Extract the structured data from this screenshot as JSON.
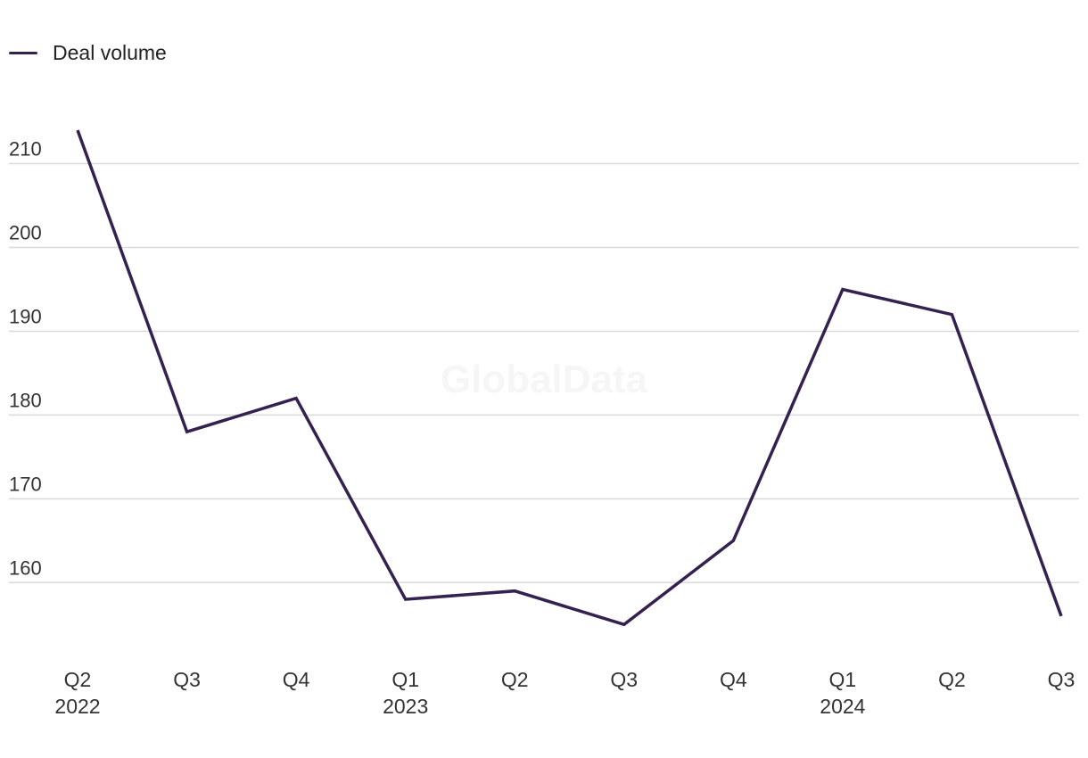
{
  "chart_data": {
    "type": "line",
    "categories": [
      "Q2",
      "Q3",
      "Q4",
      "Q1",
      "Q2",
      "Q3",
      "Q4",
      "Q1",
      "Q2",
      "Q3"
    ],
    "category_years": [
      "2022",
      "",
      "",
      "2023",
      "",
      "",
      "",
      "2024",
      "",
      ""
    ],
    "series": [
      {
        "name": "Deal volume",
        "values": [
          214,
          178,
          182,
          158,
          159,
          155,
          165,
          195,
          192,
          156
        ],
        "color": "#35214f"
      }
    ],
    "yticks": [
      160,
      170,
      180,
      190,
      200,
      210
    ],
    "ylim": [
      152.9,
      215.7
    ],
    "grid": true,
    "legend_position": "top-left",
    "watermark": "GlobalData"
  }
}
